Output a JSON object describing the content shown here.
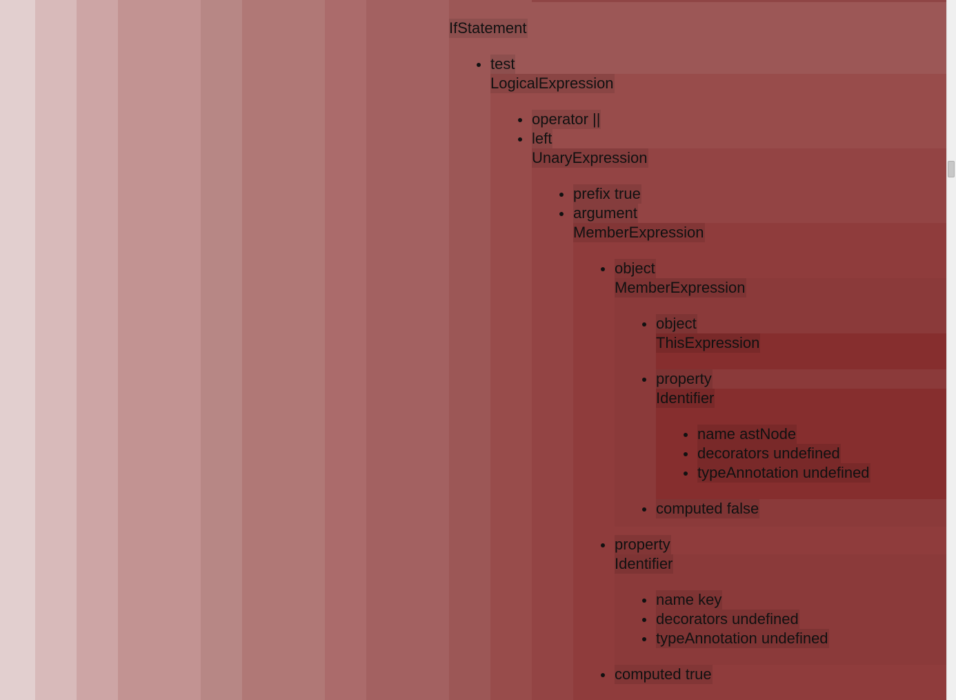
{
  "colors": {
    "depth": [
      "#e2cfcf",
      "#d8baba",
      "#cda5a5",
      "#c29392",
      "#b78785",
      "#b07876",
      "#ab6b6b",
      "#a36161",
      "#9c5756",
      "#984c4b",
      "#934444",
      "#8f3c3c",
      "#8b3a3a",
      "#862e2e"
    ]
  },
  "tree": {
    "root": "IfStatement",
    "test_key": "test",
    "test_type": "LogicalExpression",
    "operator": "operator ||",
    "left_key": "left",
    "left_type": "UnaryExpression",
    "prefix": "prefix true",
    "argument_key": "argument",
    "argument_type": "MemberExpression",
    "object_key": "object",
    "object_type": "MemberExpression",
    "inner_object_key": "object",
    "inner_object_type": "ThisExpression",
    "inner_property_key": "property",
    "inner_property_type": "Identifier",
    "inner_name": "name astNode",
    "inner_decorators": "decorators undefined",
    "inner_type_annotation": "typeAnnotation undefined",
    "inner_computed": "computed false",
    "property_key": "property",
    "property_type": "Identifier",
    "name": "name key",
    "decorators": "decorators undefined",
    "type_annotation": "typeAnnotation undefined",
    "computed": "computed true"
  }
}
